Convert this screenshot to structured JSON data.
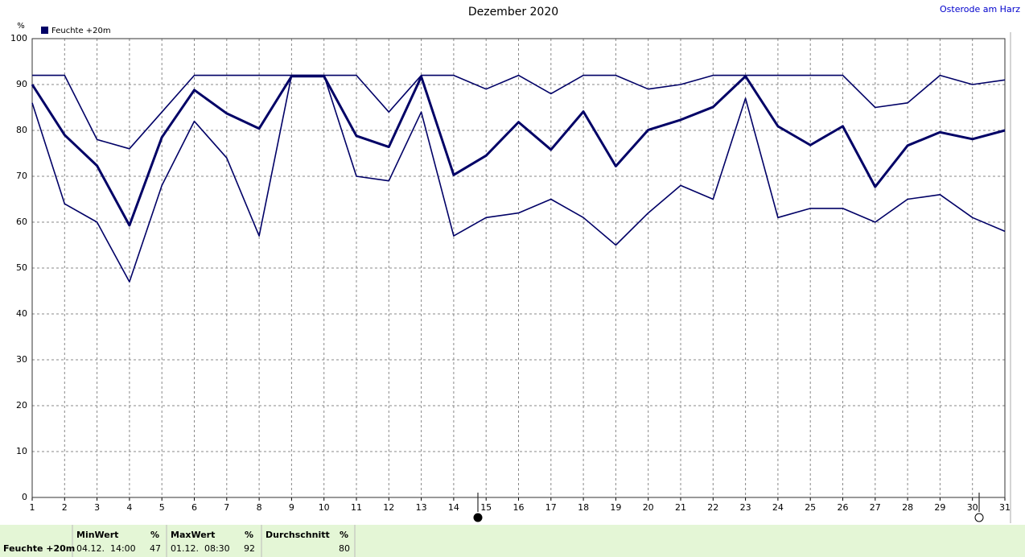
{
  "chart_data": {
    "type": "line",
    "title": "Dezember 2020",
    "station": "Osterode am Harz",
    "y_label": "%",
    "x": [
      1,
      2,
      3,
      4,
      5,
      6,
      7,
      8,
      9,
      10,
      11,
      12,
      13,
      14,
      15,
      16,
      17,
      18,
      19,
      20,
      21,
      22,
      23,
      24,
      25,
      26,
      27,
      28,
      29,
      30,
      31
    ],
    "series": [
      {
        "name": "Feuchte +20m",
        "color": "#000066",
        "values": [
          90,
          79,
          72.3,
          59.3,
          78.5,
          88.8,
          83.7,
          80.4,
          91.8,
          91.8,
          78.8,
          76.4,
          91.7,
          70.3,
          74.5,
          81.8,
          75.8,
          84.1,
          72.2,
          80.1,
          82.3,
          85.1,
          91.8,
          80.9,
          76.8,
          80.9,
          67.7,
          76.7,
          79.6,
          78.1,
          80.0
        ]
      },
      {
        "color": "#000066",
        "values": [
          92,
          92,
          78,
          76,
          84,
          92,
          92,
          92,
          92,
          92,
          92,
          84,
          92,
          92,
          89,
          92,
          88,
          92,
          92,
          89,
          90,
          92,
          92,
          92,
          92,
          92,
          85,
          86,
          92,
          90,
          91
        ]
      },
      {
        "color": "#000066",
        "values": [
          86,
          64,
          60,
          47,
          68,
          82,
          74,
          57,
          92,
          92,
          70,
          69,
          84,
          57,
          61,
          62,
          65,
          61,
          55,
          62,
          68,
          65,
          87,
          61,
          63,
          63,
          60,
          65,
          66,
          61,
          58
        ]
      }
    ],
    "xlim": [
      1,
      31
    ],
    "xticks": [
      1,
      2,
      3,
      4,
      5,
      6,
      7,
      8,
      9,
      10,
      11,
      12,
      13,
      14,
      15,
      16,
      17,
      18,
      19,
      20,
      21,
      22,
      23,
      24,
      25,
      26,
      27,
      28,
      29,
      30,
      31
    ],
    "ylim": [
      0,
      100
    ],
    "yticks": [
      0,
      10,
      20,
      30,
      40,
      50,
      60,
      70,
      80,
      90,
      100
    ],
    "grid": true
  },
  "summary": {
    "row_label": "Feuchte +20m",
    "columns": [
      {
        "header": "MinWert",
        "unit": "%",
        "time": "04.12.  14:00",
        "value": 47
      },
      {
        "header": "MaxWert",
        "unit": "%",
        "time": "01.12.  08:30",
        "value": 92
      },
      {
        "header": "Durchschnitt",
        "unit": "%",
        "value": 80
      }
    ]
  }
}
